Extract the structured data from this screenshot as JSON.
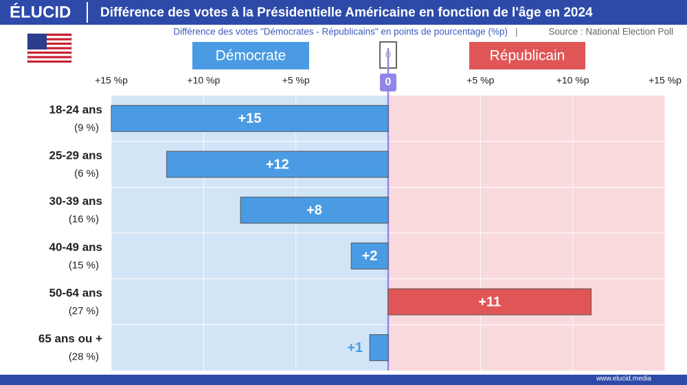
{
  "brand": "ÉLUCID",
  "footer": "www.elucid.media",
  "chart_data": {
    "type": "diverging-bar",
    "title": "Différence des votes à la Présidentielle Américaine en fonction de l'âge en 2024",
    "subtitle": "Différence des votes \"Démocrates - Républicains\" en points de pourcentage (%p)",
    "source": "Source : National Election Poll",
    "categories": [
      "18-24 ans",
      "25-29 ans",
      "30-39 ans",
      "40-49 ans",
      "50-64 ans",
      "65 ans ou +"
    ],
    "category_notes": [
      "(9 %)",
      "(6 %)",
      "(16 %)",
      "(15 %)",
      "(27 %)",
      "(28 %)"
    ],
    "series": [
      {
        "name": "Démocrate",
        "color": "#4a9be3",
        "values": [
          -15,
          -12,
          -8,
          -2,
          null,
          -1
        ],
        "value_labels": [
          "+15",
          "+12",
          "+8",
          "+2",
          null,
          "+1"
        ]
      },
      {
        "name": "Républicain",
        "color": "#e05656",
        "values": [
          null,
          null,
          null,
          null,
          11,
          null
        ],
        "value_labels": [
          null,
          null,
          null,
          null,
          "+11",
          null
        ]
      }
    ],
    "xlim": [
      -15,
      15
    ],
    "xticks": [
      {
        "value": -15,
        "label": "+15 %p"
      },
      {
        "value": -10,
        "label": "+10 %p"
      },
      {
        "value": -5,
        "label": "+5 %p"
      },
      0,
      {
        "value": 5,
        "label": "+5 %p"
      },
      {
        "value": 10,
        "label": "+10 %p"
      },
      {
        "value": 15,
        "label": "+15 %p"
      }
    ]
  }
}
